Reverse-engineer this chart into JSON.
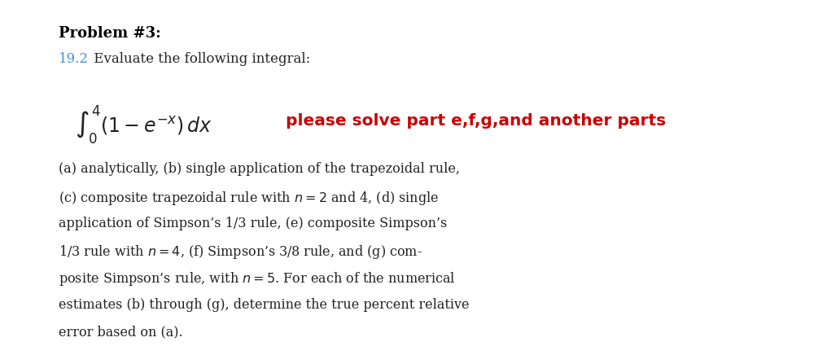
{
  "background_color": "#ffffff",
  "title_bold": "Problem #3:",
  "title_bold_fontsize": 13,
  "title_bold_color": "#000000",
  "line2_number_color": "#4a90d9",
  "line2_number": "19.2",
  "line2_text": " Evaluate the following integral:",
  "line2_fontsize": 12,
  "integral_display": "$\\int_{0}^{4}(1 - e^{-x})\\,dx$",
  "integral_fontsize": 17,
  "red_text": "please solve part e,f,g,and another parts",
  "red_color": "#cc0000",
  "red_fontsize": 14.5,
  "body_lines": [
    "(a) analytically, (b) single application of the trapezoidal rule,",
    "(c) composite trapezoidal rule with $n = 2$ and 4, (d) single",
    "application of Simpson’s 1/3 rule, (e) composite Simpson’s",
    "1/3 rule with $n = 4$, (f) Simpson’s 3/8 rule, and (g) com-",
    "posite Simpson’s rule, with $n = 5$. For each of the numerical",
    "estimates (b) through (g), determine the true percent relative",
    "error based on (a)."
  ],
  "body_fontsize": 11.5,
  "body_color": "#222222",
  "fig_width": 10.0,
  "fig_height": 4.36
}
